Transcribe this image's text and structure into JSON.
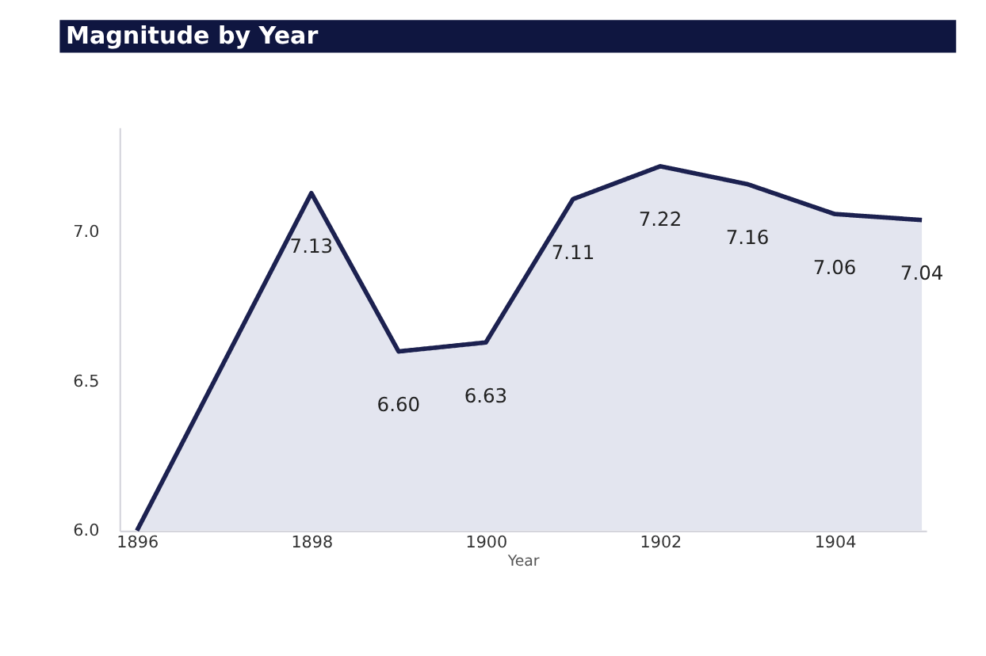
{
  "chart_data": {
    "type": "area",
    "title": "Magnitude by Year",
    "xlabel": "Year",
    "x": [
      1896,
      1898,
      1899,
      1900,
      1901,
      1902,
      1903,
      1904,
      1905
    ],
    "series": [
      {
        "color": "#1c2150",
        "values": [
          6.0,
          7.13,
          6.6,
          6.63,
          7.11,
          7.22,
          7.16,
          7.06,
          7.04
        ],
        "value_labels": [
          null,
          "7.13",
          "6.60",
          "6.63",
          "7.11",
          "7.22",
          "7.16",
          "7.06",
          "7.04"
        ]
      }
    ],
    "xlim": [
      1895.8,
      1905.05
    ],
    "xticks": [
      1896,
      1898,
      1900,
      1902,
      1904
    ],
    "ylim": [
      6.0,
      7.35
    ],
    "yticks": [
      {
        "value": 6.0,
        "label": "6.0"
      },
      {
        "value": 6.5,
        "label": "6.5"
      },
      {
        "value": 7.0,
        "label": "7.0"
      }
    ],
    "grid": false
  }
}
